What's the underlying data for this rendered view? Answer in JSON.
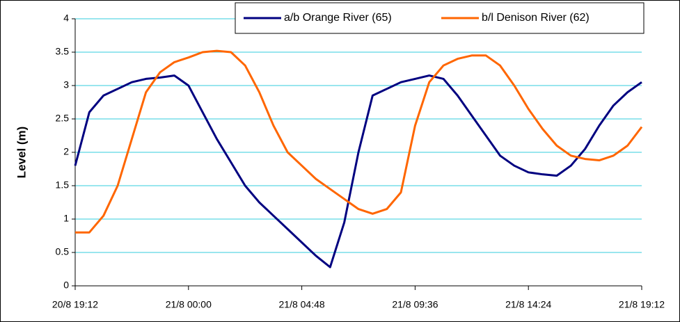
{
  "chart_data": {
    "type": "line",
    "y_label": "Level (m)",
    "x": [
      "20/8 19:12",
      "20/8 19:48",
      "20/8 20:24",
      "20/8 21:00",
      "20/8 21:36",
      "20/8 22:12",
      "20/8 22:48",
      "20/8 23:24",
      "21/8 00:00",
      "21/8 00:36",
      "21/8 01:12",
      "21/8 01:48",
      "21/8 02:24",
      "21/8 03:00",
      "21/8 03:36",
      "21/8 04:12",
      "21/8 04:48",
      "21/8 05:24",
      "21/8 06:00",
      "21/8 06:36",
      "21/8 07:12",
      "21/8 07:48",
      "21/8 08:24",
      "21/8 09:00",
      "21/8 09:36",
      "21/8 10:12",
      "21/8 10:48",
      "21/8 11:24",
      "21/8 12:00",
      "21/8 12:36",
      "21/8 13:12",
      "21/8 13:48",
      "21/8 14:24",
      "21/8 15:00",
      "21/8 15:36",
      "21/8 16:12",
      "21/8 16:48",
      "21/8 17:24",
      "21/8 18:00",
      "21/8 18:36",
      "21/8 19:12"
    ],
    "series": [
      {
        "name": "a/b Orange River (65)",
        "color": "#000080",
        "values": [
          1.8,
          2.6,
          2.85,
          2.95,
          3.05,
          3.1,
          3.12,
          3.15,
          3.0,
          2.6,
          2.2,
          1.85,
          1.5,
          1.25,
          1.05,
          0.85,
          0.65,
          0.45,
          0.28,
          0.95,
          2.0,
          2.85,
          2.95,
          3.05,
          3.1,
          3.15,
          3.1,
          2.85,
          2.55,
          2.25,
          1.95,
          1.8,
          1.7,
          1.67,
          1.65,
          1.8,
          2.05,
          2.4,
          2.7,
          2.9,
          3.05
        ]
      },
      {
        "name": "b/l Denison River (62)",
        "color": "#ff6600",
        "values": [
          0.8,
          0.8,
          1.05,
          1.5,
          2.2,
          2.9,
          3.2,
          3.35,
          3.42,
          3.5,
          3.52,
          3.5,
          3.3,
          2.9,
          2.4,
          2.0,
          1.8,
          1.6,
          1.45,
          1.3,
          1.15,
          1.08,
          1.15,
          1.4,
          2.4,
          3.05,
          3.3,
          3.4,
          3.45,
          3.45,
          3.3,
          3.0,
          2.65,
          2.35,
          2.1,
          1.95,
          1.9,
          1.88,
          1.95,
          2.1,
          2.38
        ]
      }
    ],
    "xlim": [
      "20/8 19:12",
      "21/8 19:12"
    ],
    "xticks": [
      "20/8 19:12",
      "21/8 00:00",
      "21/8 04:48",
      "21/8 09:36",
      "21/8 14:24",
      "21/8 19:12"
    ],
    "ylim": [
      0,
      4
    ],
    "yticks": [
      0,
      0.5,
      1,
      1.5,
      2,
      2.5,
      3,
      3.5,
      4
    ],
    "grid": true,
    "legend": "top-right"
  }
}
